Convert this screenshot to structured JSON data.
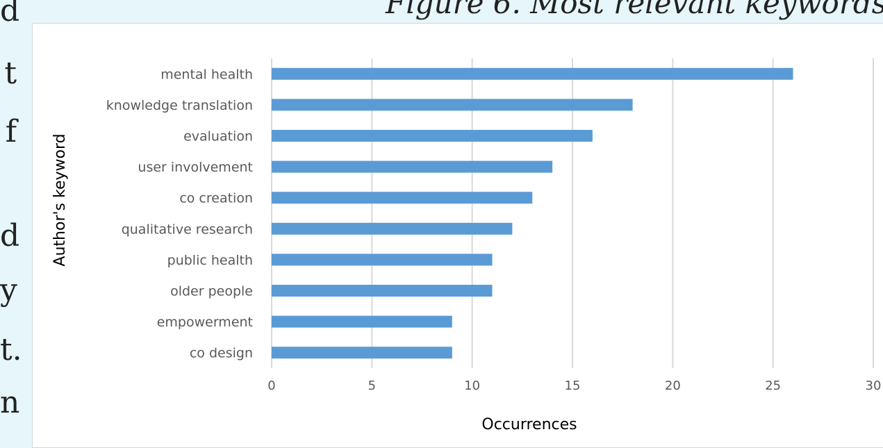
{
  "side_text": [
    "d",
    "t",
    "f",
    "d",
    "y",
    "t.",
    "n"
  ],
  "figure_caption": "Figure 6. Most relevant keywords",
  "chart_data": {
    "type": "bar",
    "orientation": "horizontal",
    "title": "",
    "xlabel": "Occurrences",
    "ylabel": "Author's keyword",
    "categories": [
      "mental health",
      "knowledge translation",
      "evaluation",
      "user involvement",
      "co creation",
      "qualitative research",
      "public health",
      "older people",
      "empowerment",
      "co design"
    ],
    "values": [
      26,
      18,
      16,
      14,
      13,
      12,
      11,
      11,
      9,
      9
    ],
    "xlim": [
      0,
      30
    ],
    "xticks": [
      0,
      5,
      10,
      15,
      20,
      25,
      30
    ],
    "grid": true,
    "bar_color": "#5b9bd5",
    "grid_color": "#d9d9d9"
  }
}
